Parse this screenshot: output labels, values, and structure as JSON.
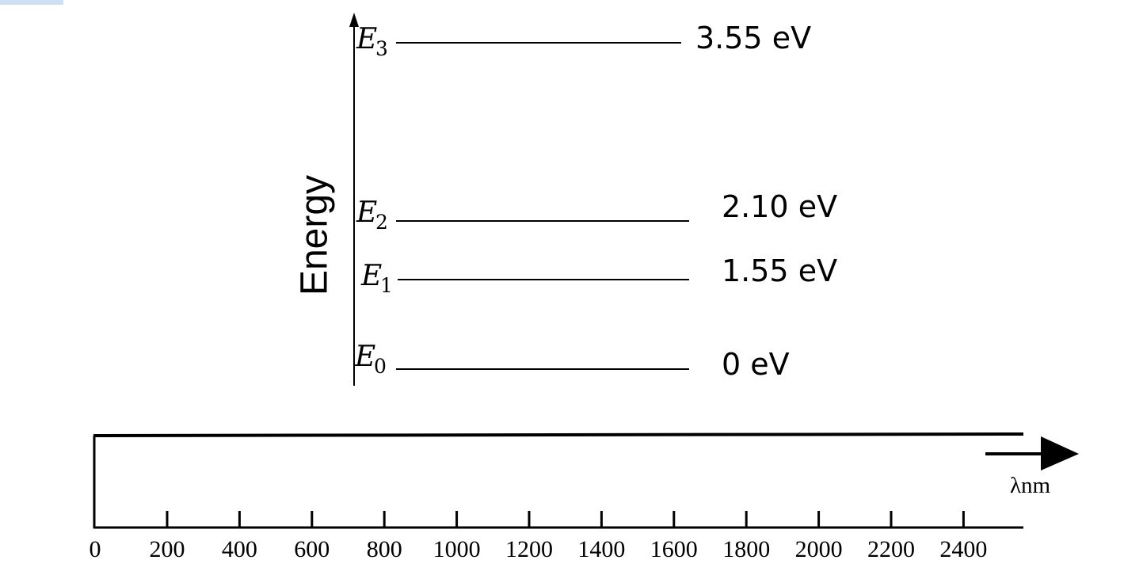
{
  "energy_diagram": {
    "axis_title": "Energy",
    "levels": [
      {
        "symbol": "E",
        "index": "0",
        "value": "0 eV"
      },
      {
        "symbol": "E",
        "index": "1",
        "value": "1.55 eV"
      },
      {
        "symbol": "E",
        "index": "2",
        "value": "2.10 eV"
      },
      {
        "symbol": "E",
        "index": "3",
        "value": "3.55 eV"
      }
    ]
  },
  "wavelength_scale": {
    "unit_label": "λnm",
    "ticks": [
      "0",
      "200",
      "400",
      "600",
      "800",
      "1000",
      "1200",
      "1400",
      "1600",
      "1800",
      "2000",
      "2200",
      "2400"
    ]
  }
}
